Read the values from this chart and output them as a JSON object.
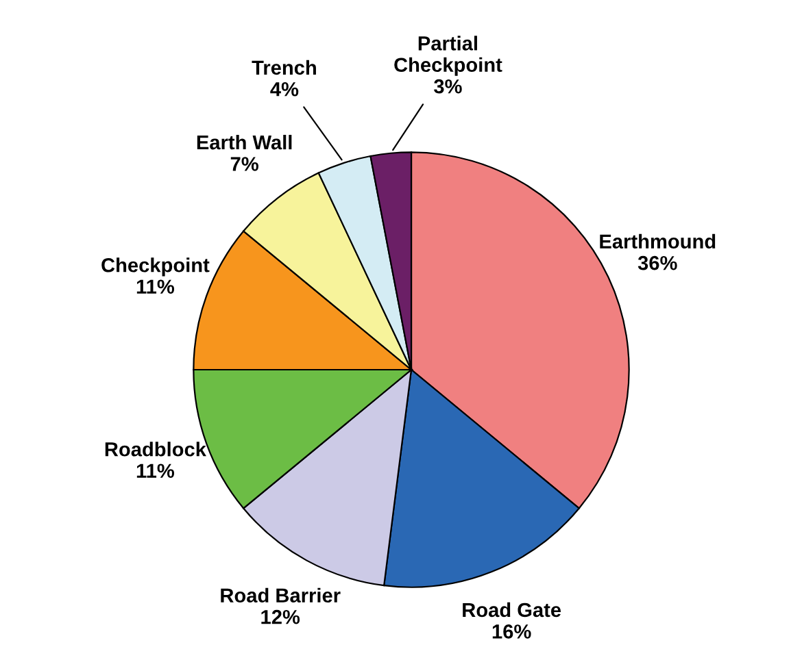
{
  "chart_data": {
    "type": "pie",
    "categories": [
      "Earthmound",
      "Road Gate",
      "Road Barrier",
      "Roadblock",
      "Checkpoint",
      "Earth Wall",
      "Trench",
      "Partial\nCheckpoint"
    ],
    "values": [
      36,
      16,
      12,
      11,
      11,
      7,
      4,
      3
    ],
    "value_labels": [
      "36%",
      "16%",
      "12%",
      "11%",
      "11%",
      "7%",
      "4%",
      "3%"
    ],
    "colors": [
      "#f08080",
      "#2a68b4",
      "#cccae6",
      "#6cbd45",
      "#f7951d",
      "#f7f39b",
      "#d4ecf4",
      "#6b1f66"
    ],
    "legend": false
  }
}
